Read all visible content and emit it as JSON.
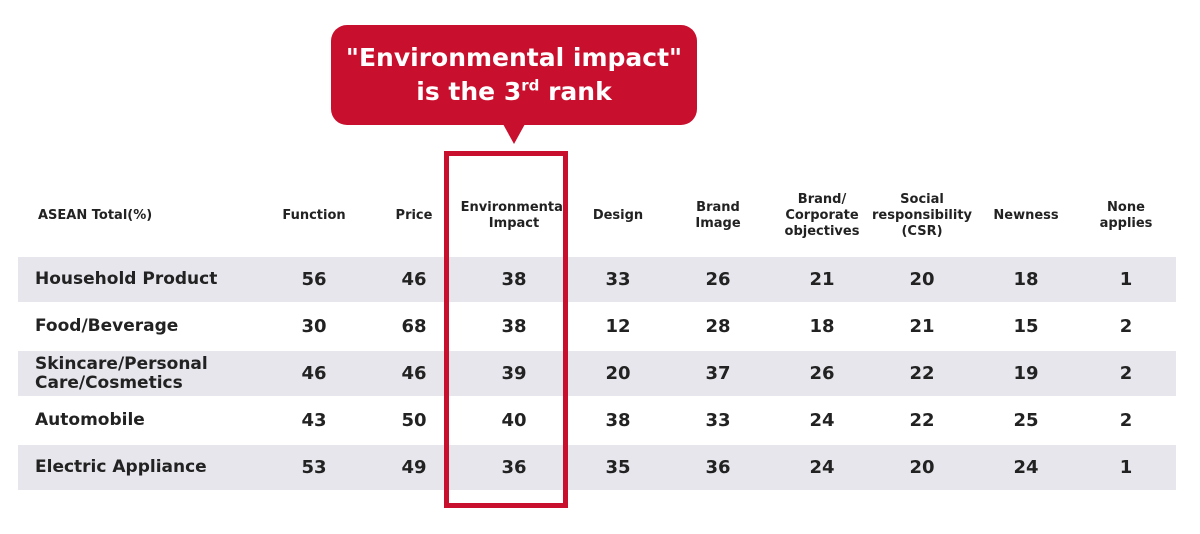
{
  "callout": {
    "line1": "\"Environmental impact\"",
    "line2_pre": "is the 3",
    "line2_sup": "rd",
    "line2_post": " rank",
    "color": "#c8102e"
  },
  "highlight_color": "#c8102e",
  "row_shade_color": "#e6e6ec",
  "chart_data": {
    "type": "table",
    "corner_label": "ASEAN Total(%)",
    "columns": [
      "Function",
      "Price",
      "Environmental\nImpact",
      "Design",
      "Brand\nImage",
      "Brand/\nCorporate\nobjectives",
      "Social\nresponsibility\n(CSR)",
      "Newness",
      "None\napplies"
    ],
    "highlighted_column": "Environmental\nImpact",
    "rows": [
      {
        "label": "Household Product",
        "values": [
          56,
          46,
          38,
          33,
          26,
          21,
          20,
          18,
          1
        ]
      },
      {
        "label": "Food/Beverage",
        "values": [
          30,
          68,
          38,
          12,
          28,
          18,
          21,
          15,
          2
        ]
      },
      {
        "label": "Skincare/Personal\nCare/Cosmetics",
        "values": [
          46,
          46,
          39,
          20,
          37,
          26,
          22,
          19,
          2
        ]
      },
      {
        "label": "Automobile",
        "values": [
          43,
          50,
          40,
          38,
          33,
          24,
          22,
          25,
          2
        ]
      },
      {
        "label": "Electric Appliance",
        "values": [
          53,
          49,
          36,
          35,
          36,
          24,
          20,
          24,
          1
        ]
      }
    ]
  }
}
